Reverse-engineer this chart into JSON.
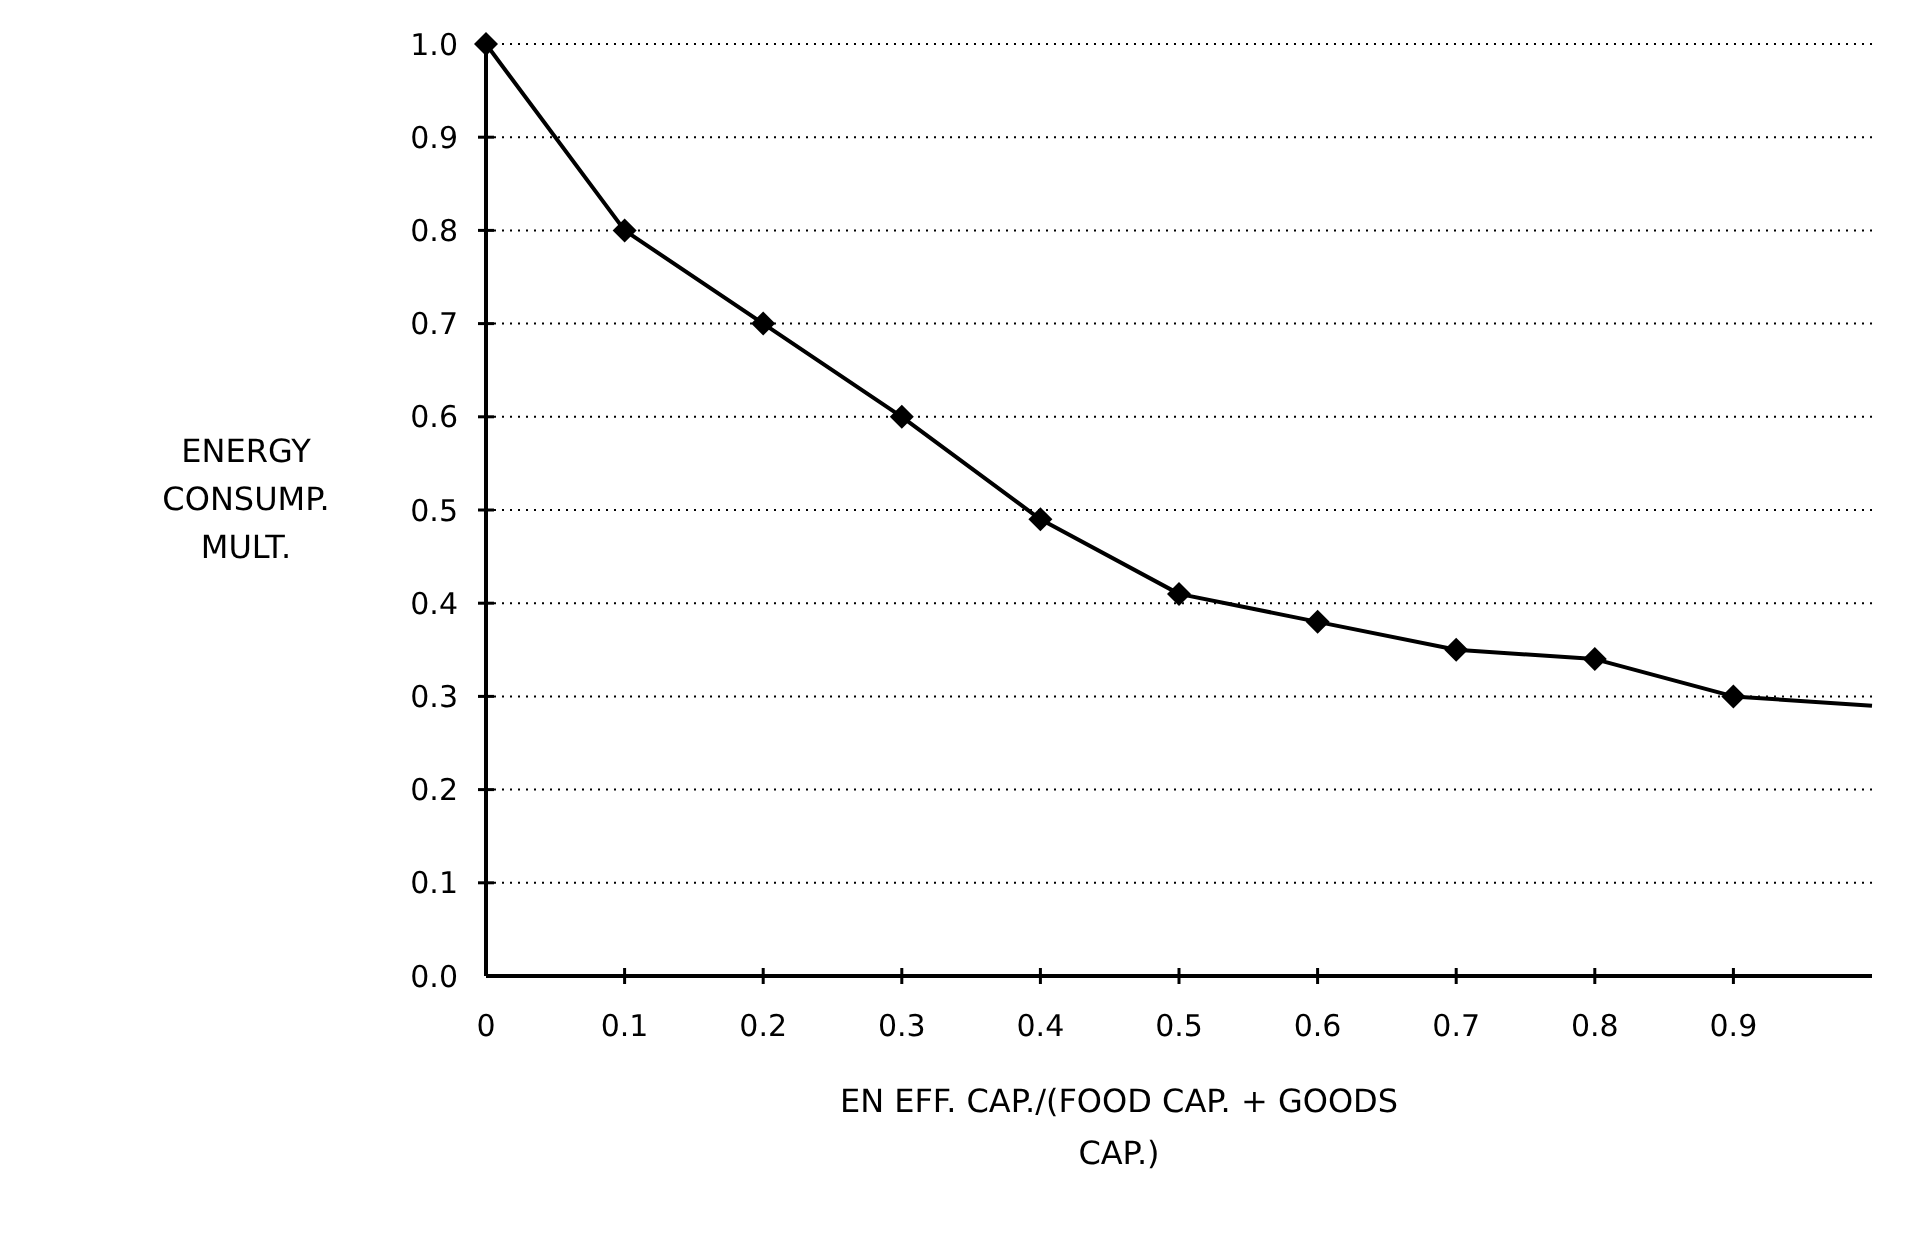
{
  "chart_data": {
    "type": "line",
    "xlabel": "EN EFF. CAP./(FOOD CAP. + GOODS CAP.)",
    "ylabel": "ENERGY CONSUMP. MULT.",
    "xlim": [
      0,
      1
    ],
    "ylim": [
      0,
      1
    ],
    "xticks": [
      0,
      0.1,
      0.2,
      0.3,
      0.4,
      0.5,
      0.6,
      0.7,
      0.8,
      0.9
    ],
    "yticks": [
      {
        "value": 0,
        "label": "0.0"
      },
      0.1,
      0.2,
      0.3,
      0.4,
      0.5,
      0.6,
      0.7,
      0.8,
      0.9,
      {
        "value": 1,
        "label": "1.0"
      }
    ],
    "grid": "y",
    "line_style": "solid",
    "series": [
      {
        "color": "#000000",
        "marker": "diamond",
        "x": [
          0,
          0.1,
          0.2,
          0.3,
          0.4,
          0.5,
          0.6,
          0.7,
          0.8,
          0.9
        ],
        "values": [
          1,
          0.8,
          0.7,
          0.6,
          0.49,
          0.41,
          0.38,
          0.35,
          0.34,
          0.3
        ]
      },
      {
        "color": "#000000",
        "marker": "none",
        "x": [
          0.9,
          1
        ],
        "values": [
          0.3,
          0.29
        ]
      }
    ]
  }
}
